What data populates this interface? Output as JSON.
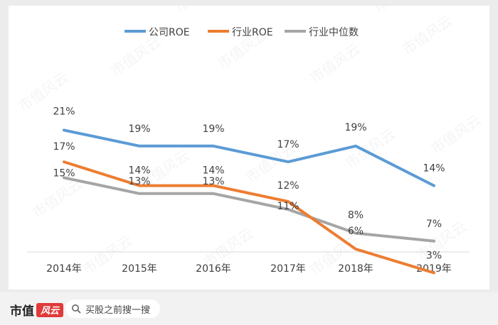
{
  "chart_data": {
    "type": "line",
    "categories": [
      "2014年",
      "2015年",
      "2016年",
      "2017年",
      "2018年",
      "2019年"
    ],
    "series": [
      {
        "name": "公司ROE",
        "values": [
          21,
          19,
          19,
          17,
          19,
          14
        ],
        "labels": [
          "21%",
          "19%",
          "19%",
          "17%",
          "19%",
          "14%"
        ],
        "color": "#5b9bd5"
      },
      {
        "name": "行业ROE",
        "values": [
          17,
          14,
          14,
          12,
          6,
          3
        ],
        "labels": [
          "17%",
          "14%",
          "14%",
          "12%",
          "6%",
          "3%"
        ],
        "color": "#ed7d31"
      },
      {
        "name": "行业中位数",
        "values": [
          15,
          13,
          13,
          11,
          8,
          7
        ],
        "labels": [
          "15%",
          "13%",
          "13%",
          "11%",
          "8%",
          "7%"
        ],
        "color": "#a5a5a5"
      }
    ],
    "ylim": [
      0,
      25
    ],
    "legend": "top-center",
    "grid": false
  },
  "watermark": "市值风云",
  "footer": {
    "brand_text": "市值",
    "brand_mark": "风云",
    "search_text": "买股之前搜一搜",
    "search_icon": "search-icon"
  }
}
